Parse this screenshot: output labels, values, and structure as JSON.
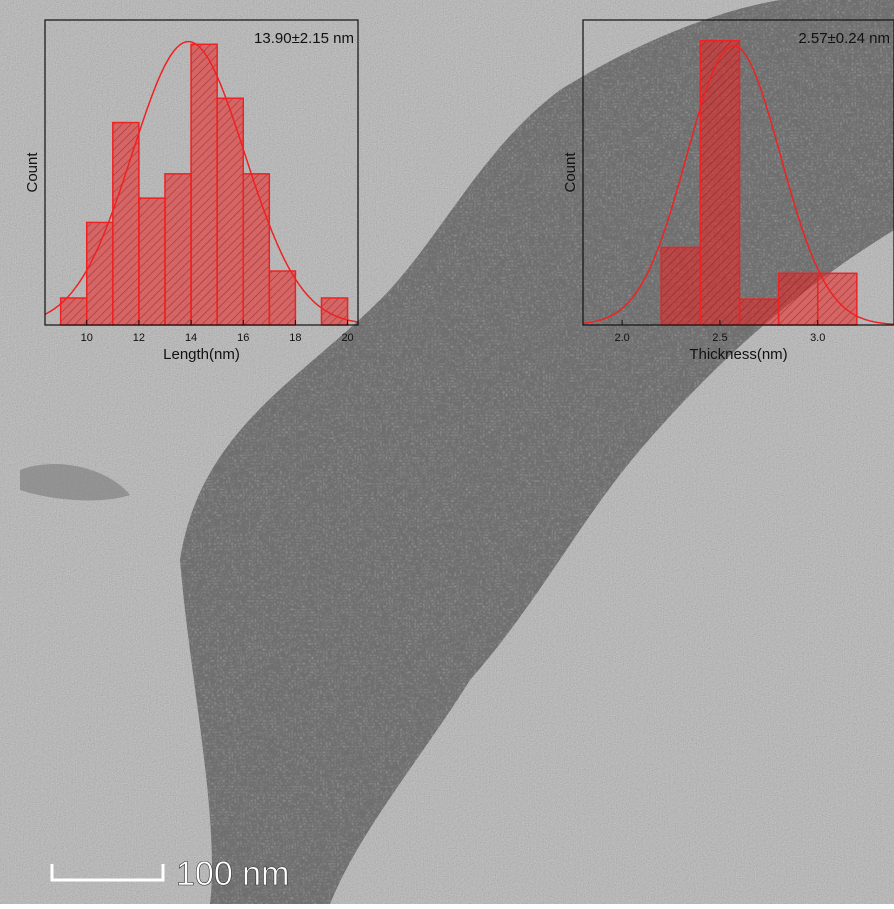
{
  "chart_data": [
    {
      "type": "histogram",
      "ylabel": "Count",
      "xlabel": "Length(nm)",
      "fit_label": "13.90±2.15 nm",
      "bins": [
        9,
        10,
        11,
        12,
        13,
        14,
        15,
        16,
        17,
        18,
        19,
        20
      ],
      "values": [
        1,
        3.8,
        7.5,
        4.7,
        5.6,
        10.4,
        8.4,
        5.6,
        2,
        0,
        1
      ],
      "fit": {
        "mean": 13.9,
        "sd": 2.15,
        "amplitude": 10.5
      },
      "color": "#ee2222",
      "xlim": [
        8.4,
        20.4
      ],
      "ylim": [
        0,
        11.3
      ],
      "xticks": [
        10,
        12,
        14,
        16,
        18,
        20
      ]
    },
    {
      "type": "histogram",
      "ylabel": "Count",
      "xlabel": "Thickness(nm)",
      "fit_label": "2.57±0.24 nm",
      "bins": [
        2.2,
        2.4,
        2.6,
        2.8,
        3.0,
        3.2
      ],
      "values": [
        3,
        11,
        1,
        2,
        2
      ],
      "fit": {
        "mean": 2.57,
        "sd": 0.24,
        "amplitude": 10.8
      },
      "color": "#ee2222",
      "xlim": [
        1.8,
        3.39
      ],
      "ylim": [
        0,
        11.8
      ],
      "xticks": [
        {
          "value": 2,
          "label": "2.0"
        },
        2.5,
        {
          "value": 3,
          "label": "3.0"
        }
      ]
    }
  ],
  "scale_bar_label": "100 nm"
}
